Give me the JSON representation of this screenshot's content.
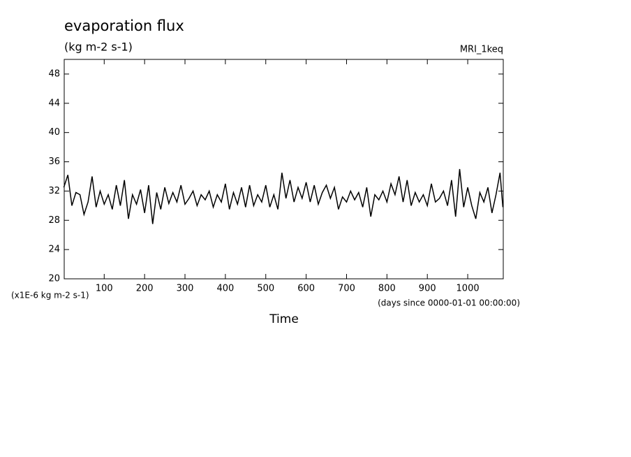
{
  "chart_data": {
    "type": "line",
    "title": "evaporation flux",
    "subtitle": "(kg m-2 s-1)",
    "annotation": "MRI_1keq",
    "y_axis_label": "(x1E-6 kg m-2 s-1)",
    "x_units_label": "(days since 0000-01-01 00:00:00)",
    "x_axis_label": "Time",
    "x": [
      0,
      10,
      20,
      30,
      40,
      50,
      60,
      70,
      80,
      90,
      100,
      110,
      120,
      130,
      140,
      150,
      160,
      170,
      180,
      190,
      200,
      210,
      220,
      230,
      240,
      250,
      260,
      270,
      280,
      290,
      300,
      310,
      320,
      330,
      340,
      350,
      360,
      370,
      380,
      390,
      400,
      410,
      420,
      430,
      440,
      450,
      460,
      470,
      480,
      490,
      500,
      510,
      520,
      530,
      540,
      550,
      560,
      570,
      580,
      590,
      600,
      610,
      620,
      630,
      640,
      650,
      660,
      670,
      680,
      690,
      700,
      710,
      720,
      730,
      740,
      750,
      760,
      770,
      780,
      790,
      800,
      810,
      820,
      830,
      840,
      850,
      860,
      870,
      880,
      890,
      900,
      910,
      920,
      930,
      940,
      950,
      960,
      970,
      980,
      990,
      1000,
      1010,
      1020,
      1030,
      1040,
      1050,
      1060,
      1070,
      1080,
      1087
    ],
    "series": [
      {
        "color": "#000000",
        "values": [
          32.5,
          34.2,
          30.0,
          31.8,
          31.5,
          28.8,
          30.5,
          34.0,
          29.8,
          32.0,
          30.2,
          31.5,
          29.5,
          32.8,
          30.0,
          33.5,
          28.2,
          31.5,
          30.2,
          32.2,
          29.0,
          32.8,
          27.5,
          31.8,
          29.5,
          32.5,
          30.3,
          31.8,
          30.5,
          32.8,
          30.2,
          31.0,
          32.0,
          30.0,
          31.5,
          30.8,
          32.0,
          29.8,
          31.5,
          30.5,
          33.0,
          29.5,
          31.8,
          30.2,
          32.5,
          29.8,
          32.8,
          30.0,
          31.5,
          30.5,
          32.8,
          29.8,
          31.5,
          29.5,
          34.5,
          31.0,
          33.5,
          30.5,
          32.5,
          31.0,
          33.2,
          30.5,
          32.8,
          30.2,
          31.8,
          32.8,
          31.0,
          32.5,
          29.5,
          31.2,
          30.5,
          32.0,
          30.8,
          31.8,
          29.8,
          32.5,
          28.5,
          31.5,
          30.8,
          32.0,
          30.5,
          33.0,
          31.5,
          34.0,
          30.5,
          33.5,
          30.0,
          31.8,
          30.5,
          31.5,
          30.0,
          33.0,
          30.5,
          31.0,
          32.0,
          30.0,
          33.5,
          28.5,
          35.0,
          29.8,
          32.5,
          30.0,
          28.2,
          31.8,
          30.5,
          32.5,
          29.0,
          31.5,
          34.5,
          29.8
        ]
      }
    ],
    "xlim": [
      1,
      1088
    ],
    "ylim": [
      20,
      50
    ],
    "xticks": [
      100,
      200,
      300,
      400,
      500,
      600,
      700,
      800,
      900,
      1000
    ],
    "yticks": [
      20,
      24,
      28,
      32,
      36,
      40,
      44,
      48
    ]
  }
}
